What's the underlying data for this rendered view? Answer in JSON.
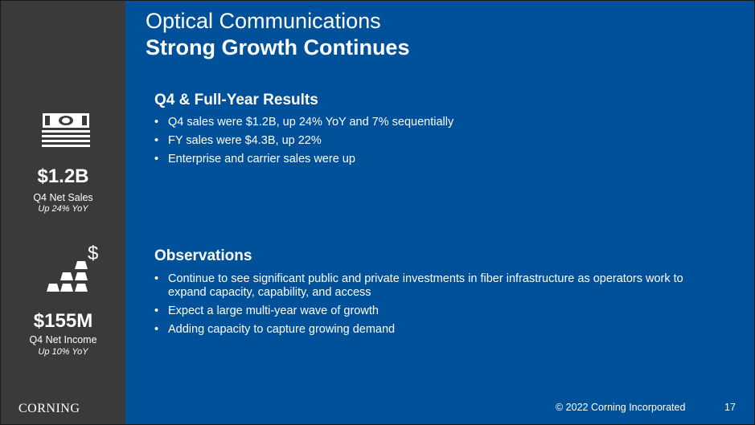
{
  "sidebar": {
    "metric1": {
      "icon": "money-stack-icon",
      "value": "$1.2B",
      "label": "Q4 Net Sales",
      "sub": "Up 24% YoY"
    },
    "metric2": {
      "icon": "gold-bars-dollar-icon",
      "value": "$155M",
      "label": "Q4 Net Income",
      "sub": "Up 10% YoY"
    },
    "logo": "CORNING"
  },
  "header": {
    "title": "Optical Communications",
    "subtitle": "Strong Growth Continues"
  },
  "results": {
    "heading": "Q4 & Full-Year Results",
    "items": [
      "Q4 sales were $1.2B, up 24% YoY and 7% sequentially",
      "FY sales were $4.3B, up 22%",
      "Enterprise and carrier sales were up"
    ]
  },
  "observations": {
    "heading": "Observations",
    "items": [
      "Continue to see significant public and private investments in fiber infrastructure as operators work to expand capacity, capability, and access",
      "Expect a large multi-year wave of growth",
      "Adding capacity to capture growing demand"
    ]
  },
  "footer": {
    "copyright": "© 2022 Corning Incorporated",
    "page": "17"
  },
  "colors": {
    "main_bg": "#00509a",
    "sidebar_bg": "#3a3a3a",
    "text": "#ffffff"
  }
}
